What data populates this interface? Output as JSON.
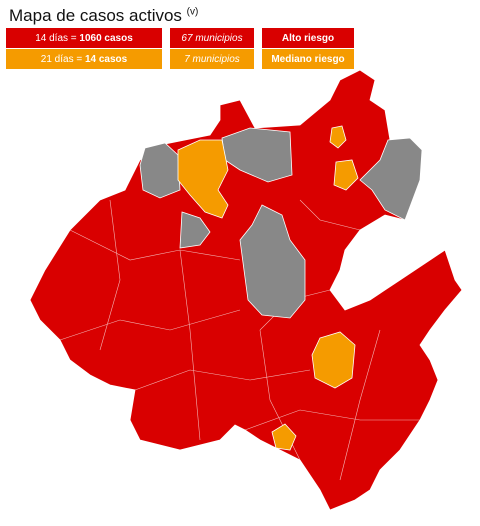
{
  "header": {
    "title": "Mapa de casos activos",
    "note": "(v)"
  },
  "legend": {
    "rows": [
      {
        "days": "14 días = ",
        "cases": "1060 casos",
        "municipalities": "67 municipios",
        "risk": "Alto riesgo"
      },
      {
        "days": "21 días = ",
        "cases": "14 casos",
        "municipalities": "7 municipios",
        "risk": "Mediano riesgo"
      }
    ]
  }
}
